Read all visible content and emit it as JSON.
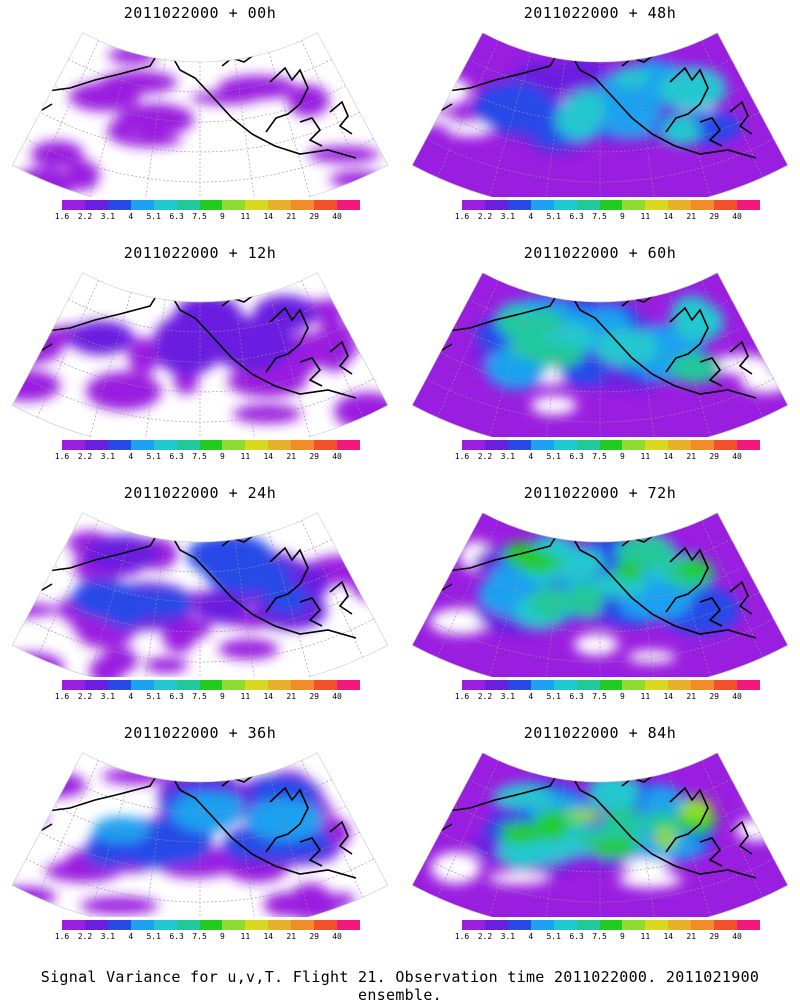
{
  "colorbar": {
    "labels": [
      "1.6",
      "2.2",
      "3.1",
      "4",
      "5.1",
      "6.3",
      "7.5",
      "9",
      "11",
      "14",
      "21",
      "29",
      "40"
    ],
    "colors": [
      "#9a1ee0",
      "#6a1ee0",
      "#2848e8",
      "#1ea0f0",
      "#22c8d0",
      "#22c89a",
      "#22cc22",
      "#8edc32",
      "#d8d820",
      "#e6b02a",
      "#f08c2a",
      "#f0502a",
      "#f0187a"
    ]
  },
  "panels": [
    {
      "title": "2011022000 + 00h",
      "intensity": 0
    },
    {
      "title": "2011022000 + 48h",
      "intensity": 4
    },
    {
      "title": "2011022000 + 12h",
      "intensity": 1
    },
    {
      "title": "2011022000 + 60h",
      "intensity": 5
    },
    {
      "title": "2011022000 + 24h",
      "intensity": 2
    },
    {
      "title": "2011022000 + 72h",
      "intensity": 6
    },
    {
      "title": "2011022000 + 36h",
      "intensity": 3
    },
    {
      "title": "2011022000 + 84h",
      "intensity": 7
    }
  ],
  "footer": "Signal Variance for u,v,T. Flight 21. Observation time 2011022000. 2011021900 ensemble."
}
